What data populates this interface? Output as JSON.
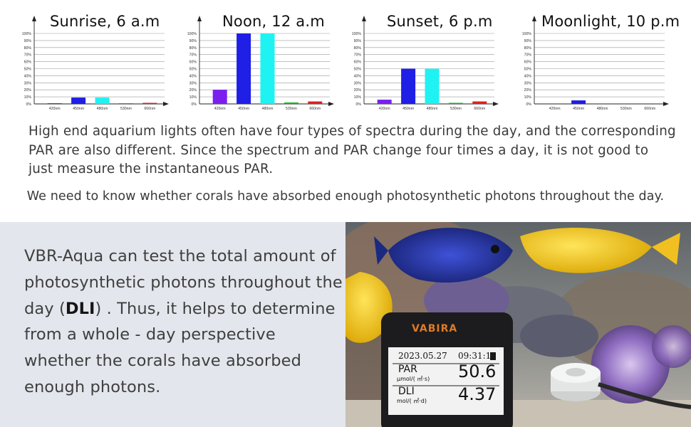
{
  "charts": [
    {
      "chart_data": {
        "type": "bar",
        "title": "Sunrise, 6 a.m",
        "categories": [
          "420nm",
          "450nm",
          "480nm",
          "530nm",
          "660nm"
        ],
        "values": [
          1,
          9,
          9,
          1,
          1.5
        ],
        "colors": [
          "#7a1ff0",
          "#1f1fe6",
          "#1ff2f2",
          "#14b814",
          "#e01f1f"
        ],
        "ylim": [
          0,
          100
        ],
        "yticks": [
          "0%",
          "10%",
          "20%",
          "30%",
          "40%",
          "50%",
          "60%",
          "70%",
          "80%",
          "90%",
          "100%"
        ],
        "grid": true
      }
    },
    {
      "chart_data": {
        "type": "bar",
        "title": "Noon, 12 a.m",
        "categories": [
          "420nm",
          "450nm",
          "480nm",
          "530nm",
          "660nm"
        ],
        "values": [
          20,
          100,
          100,
          2,
          3.5
        ],
        "colors": [
          "#7a1ff0",
          "#1f1fe6",
          "#1ff2f2",
          "#14b814",
          "#e01f1f"
        ],
        "ylim": [
          0,
          100
        ],
        "yticks": [
          "0%",
          "10%",
          "20%",
          "30%",
          "40%",
          "50%",
          "60%",
          "70%",
          "80%",
          "90%",
          "100%"
        ],
        "grid": true
      }
    },
    {
      "chart_data": {
        "type": "bar",
        "title": "Sunset, 6 p.m",
        "categories": [
          "420nm",
          "450nm",
          "480nm",
          "530nm",
          "660nm"
        ],
        "values": [
          6,
          50,
          50,
          1.5,
          3.5
        ],
        "colors": [
          "#7a1ff0",
          "#1f1fe6",
          "#1ff2f2",
          "#14b814",
          "#e01f1f"
        ],
        "ylim": [
          0,
          100
        ],
        "yticks": [
          "0%",
          "10%",
          "20%",
          "30%",
          "40%",
          "50%",
          "60%",
          "70%",
          "80%",
          "90%",
          "100%"
        ],
        "grid": true
      }
    },
    {
      "chart_data": {
        "type": "bar",
        "title": "Moonlight, 10 p.m",
        "categories": [
          "420nm",
          "450nm",
          "480nm",
          "530nm",
          "660nm"
        ],
        "values": [
          0,
          5,
          0,
          0,
          0
        ],
        "colors": [
          "#7a1ff0",
          "#1f1fe6",
          "#1ff2f2",
          "#14b814",
          "#e01f1f"
        ],
        "ylim": [
          0,
          100
        ],
        "yticks": [
          "0%",
          "10%",
          "20%",
          "30%",
          "40%",
          "50%",
          "60%",
          "70%",
          "80%",
          "90%",
          "100%"
        ],
        "grid": true
      }
    }
  ],
  "text": {
    "paragraph1": "High end aquarium lights often have four types of spectra during the day, and the corresponding PAR are also different. Since the spectrum and PAR change four times a day, it is not good to just measure the instantaneous PAR.",
    "paragraph2": "We need to know whether corals have absorbed enough photosynthetic photons throughout the day.",
    "bottom_before": "VBR-Aqua can test the total amount of photosynthetic photons throughout the day (",
    "bottom_bold": "DLI",
    "bottom_after": ") . Thus, it helps to determine from a whole - day perspective whether the corals have absorbed enough photons."
  },
  "device": {
    "brand": "VABIRA",
    "date": "2023.05.27",
    "time": "09:31:12",
    "par_label": "PAR",
    "par_unit": "μmol/( ㎡·s)",
    "par_value": "50.6",
    "dli_label": "DLI",
    "dli_unit": "mol/( ㎡·d)",
    "dli_value": "4.37"
  }
}
